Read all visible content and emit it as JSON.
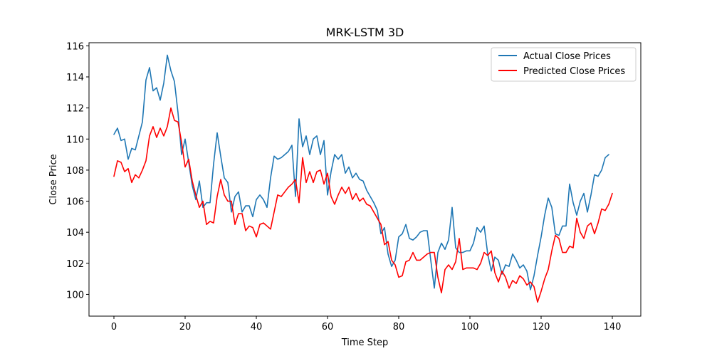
{
  "chart_data": {
    "type": "line",
    "title": "MRK-LSTM 3D",
    "xlabel": "Time Step",
    "ylabel": "Close Price",
    "xlim": [
      -7,
      148
    ],
    "ylim": [
      98.6,
      116.2
    ],
    "xticks": [
      0,
      20,
      40,
      60,
      80,
      100,
      120,
      140
    ],
    "yticks": [
      100,
      102,
      104,
      106,
      108,
      110,
      112,
      114,
      116
    ],
    "grid": false,
    "legend_position": "top-right",
    "series": [
      {
        "name": "Actual Close Prices",
        "color": "#1f77b4",
        "values": [
          110.3,
          110.7,
          109.9,
          110.0,
          108.7,
          109.4,
          109.3,
          110.2,
          111.1,
          113.8,
          114.6,
          113.1,
          113.3,
          112.5,
          113.6,
          115.4,
          114.4,
          113.7,
          111.7,
          109.0,
          110.0,
          108.5,
          107.0,
          106.1,
          107.3,
          105.6,
          105.9,
          105.9,
          108.4,
          110.4,
          108.9,
          107.5,
          107.2,
          105.3,
          106.3,
          106.6,
          105.3,
          105.7,
          105.7,
          105.0,
          106.1,
          106.4,
          106.1,
          105.6,
          107.5,
          108.9,
          108.7,
          108.8,
          109.0,
          109.2,
          109.6,
          106.3,
          111.3,
          109.5,
          110.2,
          109.0,
          110.0,
          110.2,
          109.0,
          109.9,
          106.4,
          107.9,
          109.0,
          108.7,
          109.0,
          107.8,
          108.2,
          107.5,
          107.8,
          107.4,
          107.3,
          106.7,
          106.3,
          105.9,
          105.4,
          103.9,
          104.3,
          102.6,
          101.8,
          102.2,
          103.7,
          103.9,
          104.5,
          103.6,
          103.5,
          103.7,
          104.0,
          104.1,
          104.1,
          102.2,
          100.4,
          102.7,
          103.3,
          102.9,
          103.5,
          105.6,
          103.0,
          102.7,
          102.7,
          102.8,
          102.8,
          103.3,
          104.3,
          104.0,
          104.4,
          102.6,
          101.5,
          102.4,
          102.2,
          101.3,
          101.9,
          101.8,
          102.6,
          102.2,
          101.7,
          101.9,
          101.5,
          100.3,
          101.2,
          102.5,
          103.7,
          105.1,
          106.2,
          105.6,
          103.9,
          103.8,
          104.4,
          104.4,
          107.1,
          105.9,
          105.1,
          106.0,
          106.5,
          105.3,
          106.4,
          107.7,
          107.6,
          108.0,
          108.8,
          109.0
        ]
      },
      {
        "name": "Predicted Close Prices",
        "color": "#ff0000",
        "values": [
          107.6,
          108.6,
          108.5,
          107.9,
          108.1,
          107.2,
          107.7,
          107.5,
          108.0,
          108.6,
          110.2,
          110.8,
          110.1,
          110.7,
          110.2,
          110.8,
          112.0,
          111.2,
          111.1,
          109.8,
          108.2,
          108.7,
          107.3,
          106.4,
          105.6,
          106.0,
          104.5,
          104.7,
          104.6,
          106.3,
          107.4,
          106.4,
          106.0,
          106.0,
          104.5,
          105.2,
          105.2,
          104.1,
          104.4,
          104.3,
          103.7,
          104.5,
          104.6,
          104.4,
          104.2,
          105.3,
          106.4,
          106.3,
          106.6,
          106.9,
          107.1,
          107.4,
          105.9,
          108.8,
          107.2,
          107.9,
          107.2,
          107.9,
          108.0,
          107.1,
          107.8,
          106.3,
          105.8,
          106.4,
          106.9,
          106.5,
          106.9,
          106.1,
          106.5,
          106.0,
          106.2,
          105.8,
          105.7,
          105.3,
          104.9,
          104.5,
          103.2,
          103.4,
          102.2,
          101.9,
          101.1,
          101.2,
          102.1,
          102.2,
          102.7,
          102.2,
          102.2,
          102.4,
          102.6,
          102.7,
          102.7,
          101.1,
          100.1,
          101.6,
          101.9,
          101.6,
          102.1,
          103.6,
          101.6,
          101.7,
          101.7,
          101.7,
          101.6,
          102.0,
          102.7,
          102.5,
          102.8,
          101.4,
          100.8,
          101.5,
          101.1,
          100.4,
          100.9,
          100.7,
          101.2,
          101.0,
          100.6,
          100.8,
          100.5,
          99.5,
          100.2,
          101.0,
          101.6,
          102.8,
          103.8,
          103.6,
          102.7,
          102.7,
          103.1,
          103.0,
          104.9,
          104.0,
          103.6,
          104.4,
          104.6,
          103.9,
          104.6,
          105.5,
          105.4,
          105.8,
          106.5
        ]
      }
    ]
  }
}
